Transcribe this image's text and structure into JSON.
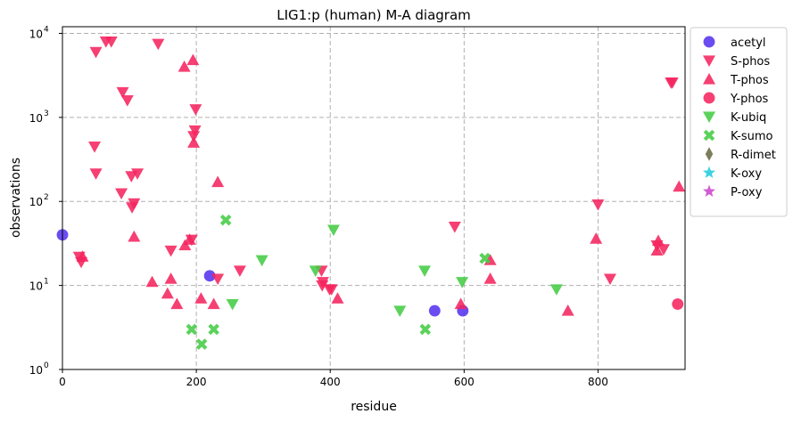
{
  "chart_data": {
    "type": "scatter",
    "title": "LIG1:p (human) M-A diagram",
    "xlabel": "residue",
    "ylabel": "observations",
    "xlim": [
      0,
      930
    ],
    "ylim": [
      1,
      12000
    ],
    "yscale": "log",
    "grid": true,
    "legend_position": "outside-right",
    "x_ticks": [
      {
        "value": 0,
        "label": "0"
      },
      {
        "value": 200,
        "label": "200"
      },
      {
        "value": 400,
        "label": "400"
      },
      {
        "value": 600,
        "label": "600"
      },
      {
        "value": 800,
        "label": "800"
      }
    ],
    "y_ticks": [
      {
        "value": 1,
        "base": "10",
        "exp": "0"
      },
      {
        "value": 10,
        "base": "10",
        "exp": "1"
      },
      {
        "value": 100,
        "base": "10",
        "exp": "2"
      },
      {
        "value": 1000,
        "base": "10",
        "exp": "3"
      },
      {
        "value": 10000,
        "base": "10",
        "exp": "4"
      }
    ],
    "series": [
      {
        "name": "acetyl",
        "marker": "circle",
        "color": "#5533ee",
        "points": [
          [
            0,
            40
          ],
          [
            220,
            13
          ],
          [
            556,
            5
          ],
          [
            598,
            5
          ]
        ]
      },
      {
        "name": "S-phos",
        "marker": "triangle-down",
        "color": "#f5245f",
        "points": [
          [
            50,
            6000
          ],
          [
            65,
            8000
          ],
          [
            73,
            8000
          ],
          [
            143,
            7500
          ],
          [
            90,
            2000
          ],
          [
            97,
            1600
          ],
          [
            199,
            1250
          ],
          [
            48,
            450
          ],
          [
            198,
            700
          ],
          [
            196,
            600
          ],
          [
            50,
            215
          ],
          [
            112,
            215
          ],
          [
            103,
            200
          ],
          [
            88,
            125
          ],
          [
            107,
            95
          ],
          [
            104,
            85
          ],
          [
            25,
            22
          ],
          [
            28,
            19
          ],
          [
            162,
            26
          ],
          [
            193,
            35
          ],
          [
            265,
            15
          ],
          [
            232,
            12
          ],
          [
            586,
            50
          ],
          [
            387,
            15
          ],
          [
            389,
            11
          ],
          [
            388,
            10
          ],
          [
            402,
            9
          ],
          [
            399,
            9
          ],
          [
            800,
            92
          ],
          [
            818,
            12
          ],
          [
            909,
            2600
          ],
          [
            911,
            2600
          ],
          [
            898,
            27
          ],
          [
            888,
            30
          ]
        ]
      },
      {
        "name": "T-phos",
        "marker": "triangle-up",
        "color": "#f5245f",
        "points": [
          [
            182,
            4000
          ],
          [
            195,
            4800
          ],
          [
            196,
            500
          ],
          [
            232,
            170
          ],
          [
            107,
            38
          ],
          [
            30,
            22
          ],
          [
            183,
            30
          ],
          [
            190,
            35
          ],
          [
            134,
            11
          ],
          [
            162,
            12
          ],
          [
            157,
            8
          ],
          [
            171,
            6
          ],
          [
            207,
            7
          ],
          [
            226,
            6
          ],
          [
            411,
            7
          ],
          [
            595,
            6
          ],
          [
            639,
            20
          ],
          [
            639,
            12
          ],
          [
            755,
            5
          ],
          [
            797,
            36
          ],
          [
            888,
            26
          ],
          [
            890,
            34
          ],
          [
            921,
            150
          ]
        ]
      },
      {
        "name": "Y-phos",
        "marker": "circle",
        "color": "#f5245f",
        "points": [
          [
            919,
            6
          ]
        ]
      },
      {
        "name": "K-ubiq",
        "marker": "triangle-down",
        "color": "#44cc44",
        "points": [
          [
            254,
            6
          ],
          [
            298,
            20
          ],
          [
            378,
            15
          ],
          [
            405,
            46
          ],
          [
            504,
            5
          ],
          [
            541,
            15
          ],
          [
            597,
            11
          ],
          [
            738,
            9
          ]
        ]
      },
      {
        "name": "K-sumo",
        "marker": "x",
        "color": "#44cc44",
        "points": [
          [
            244,
            60
          ],
          [
            193,
            3
          ],
          [
            208,
            2
          ],
          [
            226,
            3
          ],
          [
            542,
            3
          ],
          [
            631,
            21
          ]
        ]
      },
      {
        "name": "R-dimet",
        "marker": "diamond",
        "color": "#6b6b44",
        "points": []
      },
      {
        "name": "K-oxy",
        "marker": "star",
        "color": "#22ccdd",
        "points": []
      },
      {
        "name": "P-oxy",
        "marker": "star",
        "color": "#cc44cc",
        "points": []
      }
    ]
  }
}
